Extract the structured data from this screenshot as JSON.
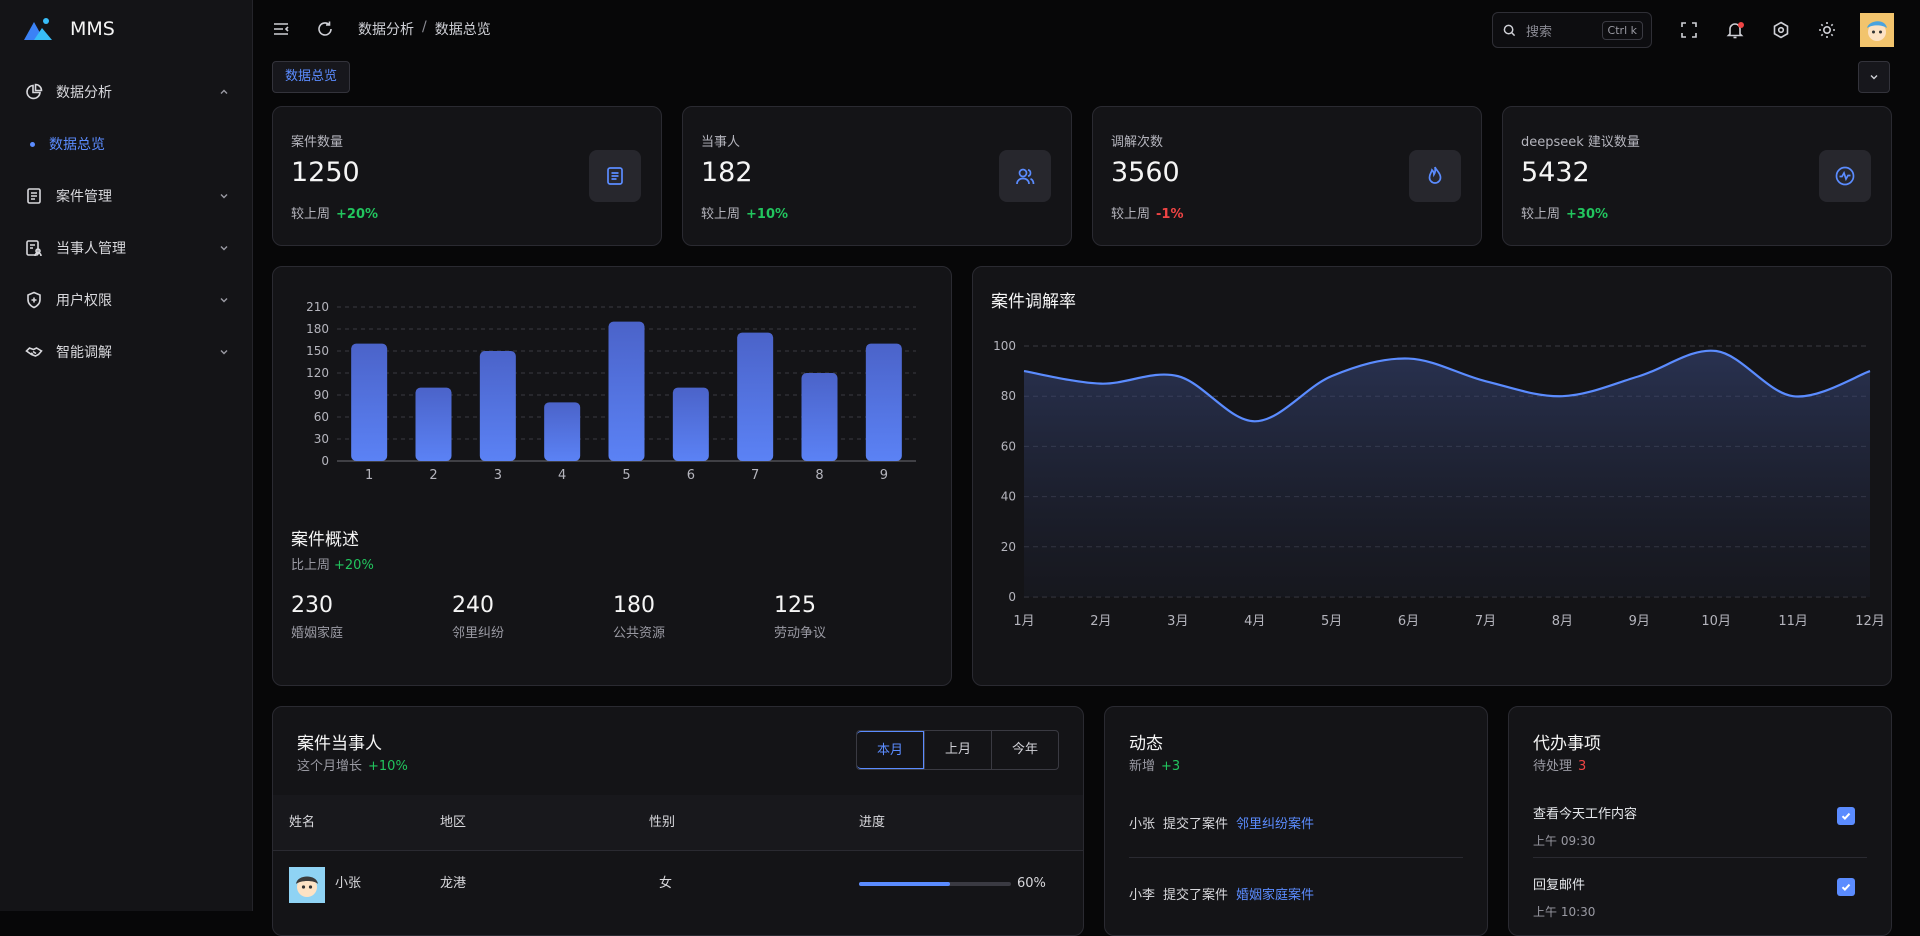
{
  "brand": {
    "name": "MMS"
  },
  "sidebar": {
    "items": [
      {
        "label": "数据分析",
        "icon": "pie-chart-icon",
        "expanded": true
      },
      {
        "label": "数据总览",
        "sub": true
      },
      {
        "label": "案件管理",
        "icon": "document-icon"
      },
      {
        "label": "当事人管理",
        "icon": "person-file-icon"
      },
      {
        "label": "用户权限",
        "icon": "shield-plus-icon"
      },
      {
        "label": "智能调解",
        "icon": "handshake-icon"
      }
    ]
  },
  "header": {
    "breadcrumb": [
      "数据分析",
      "数据总览"
    ],
    "search_placeholder": "搜索",
    "search_shortcut": "Ctrl k"
  },
  "tag": {
    "label": "数据总览"
  },
  "stats": [
    {
      "label": "案件数量",
      "value": "1250",
      "compare_label": "较上周",
      "change": "+20%",
      "icon": "document-icon"
    },
    {
      "label": "当事人",
      "value": "182",
      "compare_label": "较上周",
      "change": "+10%",
      "icon": "users-icon"
    },
    {
      "label": "调解次数",
      "value": "3560",
      "compare_label": "较上周",
      "change": "-1%",
      "icon": "fire-icon"
    },
    {
      "label": "deepseek 建议数量",
      "value": "5432",
      "compare_label": "较上周",
      "change": "+30%",
      "icon": "activity-icon"
    }
  ],
  "colors": {
    "accent": "#5b8cff",
    "positive": "#22c55e",
    "negative": "#ef4444"
  },
  "chart_data": [
    {
      "type": "bar",
      "title": "",
      "categories": [
        "1",
        "2",
        "3",
        "4",
        "5",
        "6",
        "7",
        "8",
        "9"
      ],
      "values": [
        160,
        100,
        150,
        80,
        190,
        100,
        175,
        120,
        160
      ],
      "ylim": [
        0,
        210
      ],
      "yticks": [
        0,
        30,
        60,
        90,
        120,
        150,
        180,
        210
      ],
      "grid": true
    },
    {
      "type": "area",
      "title": "案件调解率",
      "categories": [
        "1月",
        "2月",
        "3月",
        "4月",
        "5月",
        "6月",
        "7月",
        "8月",
        "9月",
        "10月",
        "11月",
        "12月"
      ],
      "values": [
        90,
        85,
        88,
        70,
        88,
        95,
        86,
        80,
        88,
        98,
        80,
        90
      ],
      "ylim": [
        0,
        100
      ],
      "yticks": [
        0,
        20,
        40,
        60,
        80,
        100
      ],
      "grid": true
    }
  ],
  "overview": {
    "title": "案件概述",
    "compare_label": "比上周",
    "change": "+20%",
    "items": [
      {
        "value": "230",
        "label": "婚姻家庭"
      },
      {
        "value": "240",
        "label": "邻里纠纷"
      },
      {
        "value": "180",
        "label": "公共资源"
      },
      {
        "value": "125",
        "label": "劳动争议"
      }
    ]
  },
  "parties": {
    "title": "案件当事人",
    "sub_label": "这个月增长",
    "change": "+10%",
    "tabs": [
      "本月",
      "上月",
      "今年"
    ],
    "columns": [
      "姓名",
      "地区",
      "性别",
      "进度"
    ],
    "rows": [
      {
        "name": "小张",
        "region": "龙港",
        "gender": "女",
        "progress": 60,
        "progress_label": "60%"
      }
    ]
  },
  "feed": {
    "title": "动态",
    "sub_label": "新增",
    "change": "+3",
    "items": [
      {
        "user": "小张",
        "action": "提交了案件",
        "target": "邻里纠纷案件"
      },
      {
        "user": "小李",
        "action": "提交了案件",
        "target": "婚姻家庭案件"
      }
    ]
  },
  "todo": {
    "title": "代办事项",
    "sub_label": "待处理",
    "count": "3",
    "items": [
      {
        "title": "查看今天工作内容",
        "time": "上午 09:30",
        "done": true
      },
      {
        "title": "回复邮件",
        "time": "上午 10:30",
        "done": true
      }
    ]
  }
}
